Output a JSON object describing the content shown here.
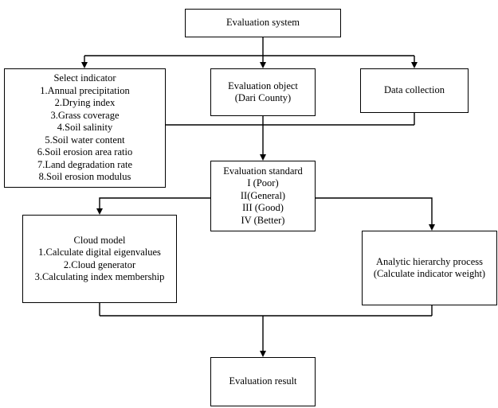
{
  "nodes": {
    "evaluation_system": {
      "lines": [
        "Evaluation system"
      ]
    },
    "select_indicator": {
      "lines": [
        "Select indicator",
        "1.Annual precipitation",
        "2.Drying index",
        "3.Grass coverage",
        "4.Soil salinity",
        "5.Soil water content",
        "6.Soil erosion area ratio",
        "7.Land degradation rate",
        "8.Soil erosion modulus"
      ]
    },
    "evaluation_object": {
      "lines": [
        "Evaluation object",
        "(Dari County)"
      ]
    },
    "data_collection": {
      "lines": [
        "Data collection"
      ]
    },
    "evaluation_standard": {
      "lines": [
        "Evaluation standard",
        "I (Poor)",
        "II(General)",
        "III (Good)",
        "IV (Better)"
      ]
    },
    "cloud_model": {
      "lines": [
        "Cloud model",
        "1.Calculate digital eigenvalues",
        "2.Cloud generator",
        "3.Calculating index membership"
      ]
    },
    "ahp": {
      "lines": [
        "Analytic hierarchy process",
        "(Calculate indicator weight)"
      ]
    },
    "evaluation_result": {
      "lines": [
        "Evaluation result"
      ]
    }
  }
}
